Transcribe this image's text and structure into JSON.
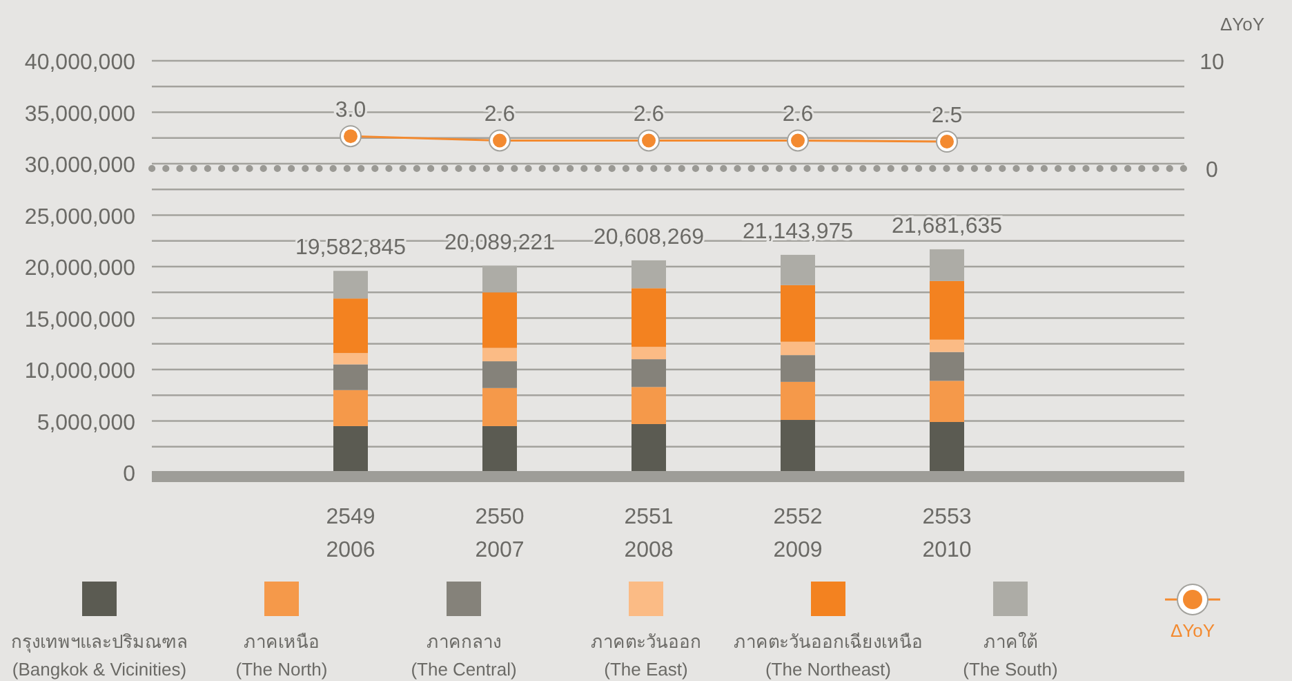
{
  "chart_data": {
    "type": "bar",
    "stacked": true,
    "y2label": "ΔYoY",
    "categories": [
      "2549\n2006",
      "2550\n2007",
      "2551\n2008",
      "2552\n2009",
      "2553\n2010"
    ],
    "series": [
      {
        "name": "กรุงเทพฯและปริมณฑล\n(Bangkok & Vicinities)",
        "color": "#5b5b52",
        "values": [
          4500000,
          4500000,
          4700000,
          5100000,
          4900000
        ]
      },
      {
        "name": "ภาคเหนือ\n(The North)",
        "color": "#f5994a",
        "values": [
          3500000,
          3700000,
          3600000,
          3700000,
          4000000
        ]
      },
      {
        "name": "ภาคกลาง\n(The Central)",
        "color": "#85827a",
        "values": [
          2500000,
          2600000,
          2700000,
          2600000,
          2800000
        ]
      },
      {
        "name": "ภาคตะวันออก\n(The East)",
        "color": "#fbbb85",
        "values": [
          1100000,
          1300000,
          1200000,
          1300000,
          1200000
        ]
      },
      {
        "name": "ภาคตะวันออกเฉียงเหนือ\n(The Northeast)",
        "color": "#f38220",
        "values": [
          5300000,
          5400000,
          5700000,
          5500000,
          5700000
        ]
      },
      {
        "name": "ภาคใต้\n(The South)",
        "color": "#adaca6",
        "values": [
          2682845,
          2589221,
          2708269,
          2943975,
          3081635
        ]
      },
      {
        "name": "ΔYoY",
        "type": "line",
        "axis": "y2",
        "color": "#f38a30",
        "marker": "circle",
        "values": [
          3.0,
          2.6,
          2.6,
          2.6,
          2.5
        ],
        "value_labels": [
          "3.0",
          "2.6",
          "2.6",
          "2.6",
          "2.5"
        ]
      }
    ],
    "totals": [
      "19,582,845",
      "20,089,221",
      "20,608,269",
      "21,143,975",
      "21,681,635"
    ],
    "ylim": [
      0,
      40000000
    ],
    "yticks": [
      {
        "value": 0,
        "label": "0"
      },
      {
        "value": 5000000,
        "label": "5,000,000"
      },
      {
        "value": 10000000,
        "label": "10,000,000"
      },
      {
        "value": 15000000,
        "label": "15,000,000"
      },
      {
        "value": 20000000,
        "label": "20,000,000"
      },
      {
        "value": 25000000,
        "label": "25,000,000"
      },
      {
        "value": 30000000,
        "label": "30,000,000"
      },
      {
        "value": 35000000,
        "label": "35,000,000"
      },
      {
        "value": 40000000,
        "label": "40,000,000"
      }
    ],
    "y2lim": [
      -28.2,
      10
    ],
    "y2ticks": [
      0,
      10
    ],
    "ref_lines": [
      {
        "axis": "y2",
        "value": 0,
        "color": "#9a9994",
        "line_style": "dotted"
      }
    ],
    "grid": "y",
    "legend": "bottom"
  }
}
